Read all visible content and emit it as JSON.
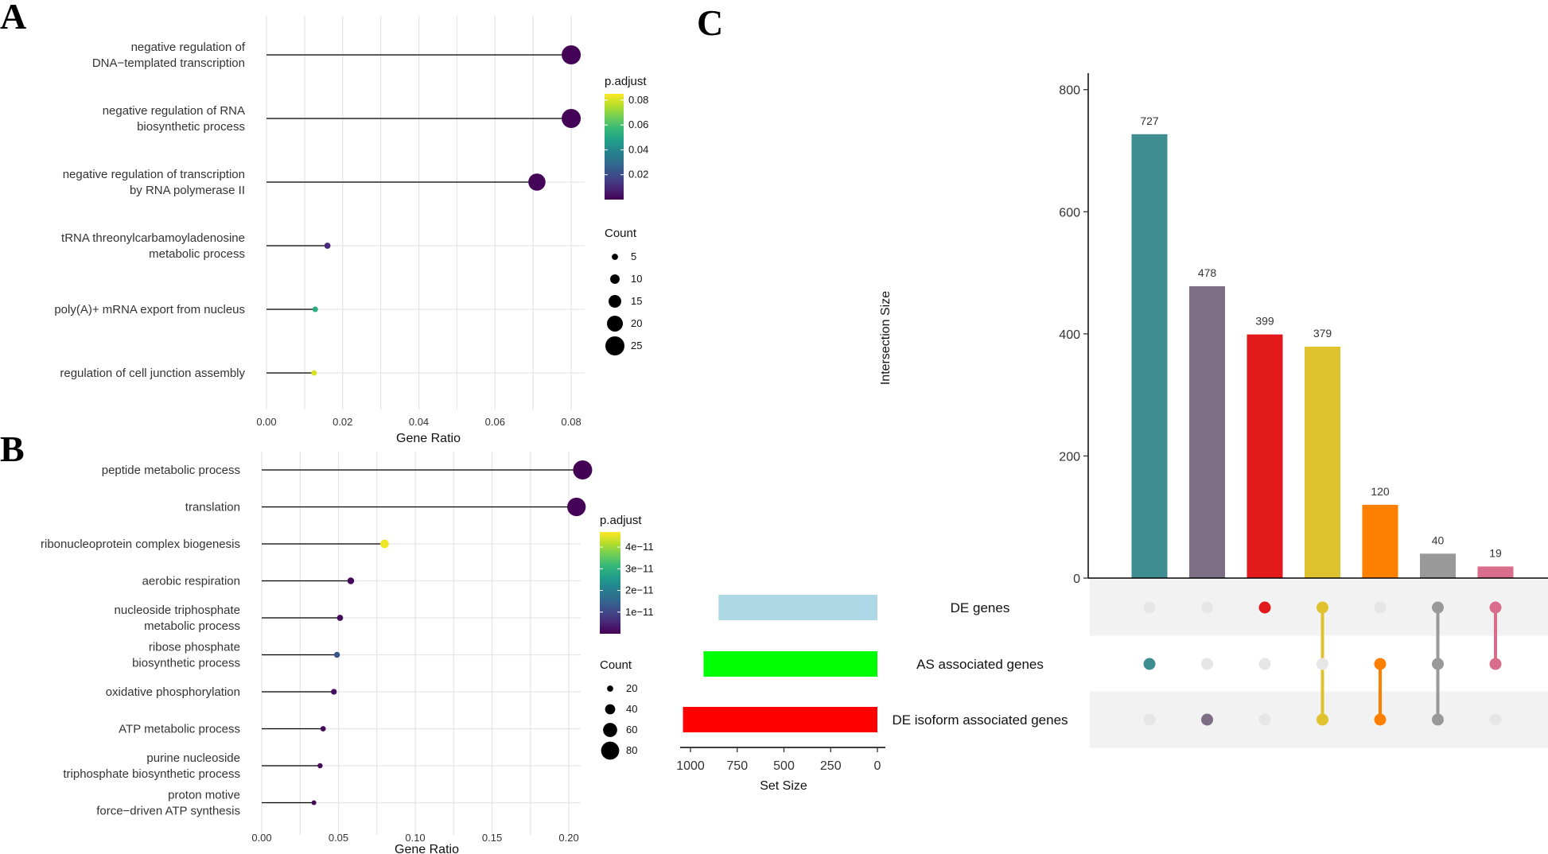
{
  "panels": {
    "a": "A",
    "b": "B",
    "c": "C"
  },
  "colors": {
    "viridis": [
      "#440154",
      "#482878",
      "#3e4a89",
      "#31688e",
      "#26828e",
      "#1f9e89",
      "#35b779",
      "#6ece58",
      "#b5de2b",
      "#fde725"
    ],
    "lollipop_line": "#000000",
    "grid": "#e6e6e6",
    "axis": "#000000"
  },
  "chart_data": [
    {
      "id": "A",
      "type": "scatter",
      "subtype": "lollipop",
      "xlabel": "Gene Ratio",
      "ylabel": "",
      "xlim": [
        0,
        0.085
      ],
      "xticks": [
        0.0,
        0.02,
        0.04,
        0.06,
        0.08
      ],
      "xtick_labels": [
        "0.00",
        "0.02",
        "0.04",
        "0.06",
        "0.08"
      ],
      "categories": [
        [
          "negative regulation of",
          "DNA−templated transcription"
        ],
        [
          "negative regulation of RNA",
          "biosynthetic process"
        ],
        [
          "negative regulation of transcription",
          "by RNA polymerase II"
        ],
        [
          "tRNA threonylcarbamoyladenosine",
          "metabolic process"
        ],
        [
          "poly(A)+ mRNA export from nucleus"
        ],
        [
          "regulation of cell junction assembly"
        ]
      ],
      "gene_ratio": [
        0.08,
        0.08,
        0.071,
        0.016,
        0.0128,
        0.0125
      ],
      "count": [
        25,
        25,
        22,
        5,
        4,
        4
      ],
      "p_adjust": [
        0.0005,
        0.0005,
        0.0008,
        0.01,
        0.052,
        0.08
      ],
      "legend_padj": {
        "title": "p.adjust",
        "min": 0.0,
        "max": 0.085,
        "ticks": [
          0.02,
          0.04,
          0.06,
          0.08
        ],
        "tick_labels": [
          "0.02",
          "0.04",
          "0.06",
          "0.08"
        ]
      },
      "legend_count": {
        "title": "Count",
        "values": [
          5,
          10,
          15,
          20,
          25
        ],
        "labels": [
          "5",
          "10",
          "15",
          "20",
          "25"
        ],
        "range": [
          4,
          25
        ]
      }
    },
    {
      "id": "B",
      "type": "scatter",
      "subtype": "lollipop",
      "xlabel": "Gene Ratio",
      "ylabel": "",
      "xlim": [
        0,
        0.215
      ],
      "xticks": [
        0.0,
        0.05,
        0.1,
        0.15,
        0.2
      ],
      "xtick_labels": [
        "0.00",
        "0.05",
        "0.10",
        "0.15",
        "0.20"
      ],
      "categories": [
        [
          "peptide metabolic process"
        ],
        [
          "translation"
        ],
        [
          "ribonucleoprotein complex biogenesis"
        ],
        [
          "aerobic respiration"
        ],
        [
          "nucleoside triphosphate",
          "metabolic process"
        ],
        [
          "ribose phosphate",
          "biosynthetic process"
        ],
        [
          "oxidative phosphorylation"
        ],
        [
          "ATP metabolic process"
        ],
        [
          "purine nucleoside",
          "triphosphate biosynthetic process"
        ],
        [
          "proton motive",
          "force−driven ATP synthesis"
        ]
      ],
      "gene_ratio": [
        0.209,
        0.205,
        0.08,
        0.058,
        0.051,
        0.049,
        0.047,
        0.04,
        0.038,
        0.034
      ],
      "count": [
        85,
        82,
        32,
        23,
        20,
        19,
        18,
        16,
        15,
        13
      ],
      "p_adjust": [
        2e-13,
        3e-13,
        4.6e-11,
        1e-12,
        1.5e-12,
        1.25e-11,
        2e-12,
        1e-12,
        1e-12,
        1e-12
      ],
      "legend_padj": {
        "title": "p.adjust",
        "min": 0.0,
        "max": 4.7e-11,
        "ticks": [
          1e-11,
          2e-11,
          3e-11,
          4e-11
        ],
        "tick_labels": [
          "1e−11",
          "2e−11",
          "3e−11",
          "4e−11"
        ]
      },
      "legend_count": {
        "title": "Count",
        "values": [
          20,
          40,
          60,
          80
        ],
        "labels": [
          "20",
          "40",
          "60",
          "80"
        ],
        "range": [
          13,
          85
        ]
      }
    },
    {
      "id": "C",
      "type": "bar",
      "subtype": "upset",
      "ylabel": "Intersection Size",
      "ylim": [
        0,
        840
      ],
      "yticks": [
        0,
        200,
        400,
        600,
        800
      ],
      "ytick_labels": [
        "0",
        "200",
        "400",
        "600",
        "800"
      ],
      "intersections": [
        727,
        478,
        399,
        379,
        120,
        40,
        19
      ],
      "intersection_labels": [
        "727",
        "478",
        "399",
        "379",
        "120",
        "40",
        "19"
      ],
      "bar_colors": [
        "#3e8e91",
        "#7d6e86",
        "#e31a1c",
        "#dfc22e",
        "#ff7f00",
        "#999999",
        "#d96d8c"
      ],
      "sets": [
        "DE genes",
        "AS associated genes",
        "DE isoform associated genes"
      ],
      "set_sizes": [
        850,
        930,
        1040
      ],
      "set_colors": [
        "#add8e6",
        "#00ff00",
        "#ff0000"
      ],
      "set_size_label": "Set Size",
      "set_size_ticks": [
        1000,
        750,
        500,
        250,
        0
      ],
      "set_size_tick_labels": [
        "1000",
        "750",
        "500",
        "250",
        "0"
      ],
      "matrix": [
        [
          false,
          false,
          true,
          true,
          false,
          true,
          true
        ],
        [
          true,
          false,
          false,
          false,
          true,
          true,
          true
        ],
        [
          false,
          true,
          false,
          true,
          true,
          true,
          false
        ]
      ],
      "inactive_dot_color": "#e6e6e6",
      "stripe_color": "#f2f2f2"
    }
  ]
}
